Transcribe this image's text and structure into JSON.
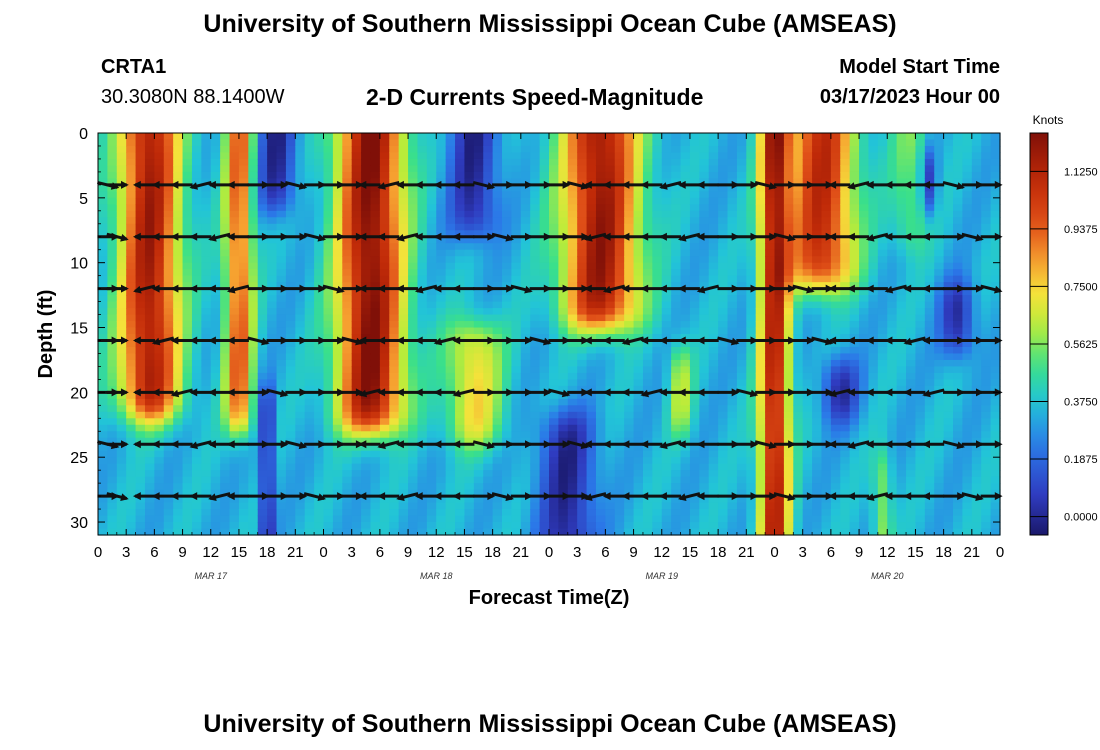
{
  "header": {
    "title": "University of Southern Mississippi Ocean Cube (AMSEAS)",
    "station": "CRTA1",
    "coords": "30.3080N  88.1400W",
    "subtitle": "2-D Currents Speed-Magnitude",
    "model_start_label": "Model Start Time",
    "model_start_value": "03/17/2023 Hour 00"
  },
  "footer": {
    "title": "University of Southern Mississippi Ocean Cube (AMSEAS)"
  },
  "chart_data": {
    "type": "heatmap",
    "xlabel": "Forecast Time(Z)",
    "ylabel": "Depth (ft)",
    "x_ticks": [
      "0",
      "3",
      "6",
      "9",
      "12",
      "15",
      "18",
      "21",
      "0",
      "3",
      "6",
      "9",
      "12",
      "15",
      "18",
      "21",
      "0",
      "3",
      "6",
      "9",
      "12",
      "15",
      "18",
      "21",
      "0",
      "3",
      "6",
      "9",
      "12",
      "15",
      "18",
      "21",
      "0"
    ],
    "day_labels": [
      {
        "text": "MAR 17",
        "x_hours": 12
      },
      {
        "text": "MAR 18",
        "x_hours": 36
      },
      {
        "text": "MAR 19",
        "x_hours": 60
      },
      {
        "text": "MAR 20",
        "x_hours": 84
      }
    ],
    "y_ticks": [
      0,
      5,
      10,
      15,
      20,
      25,
      30
    ],
    "xlim_hours": [
      0,
      96
    ],
    "ylim_ft": [
      0,
      31
    ],
    "colorbar": {
      "label": "Knots",
      "range": [
        -0.06,
        1.25
      ],
      "tick_values": [
        1.125,
        0.9375,
        0.75,
        0.5625,
        0.375,
        0.1875,
        0.0
      ],
      "tick_labels": [
        "1.1250",
        "0.9375",
        "0.7500",
        "0.5625",
        "0.3750",
        "0.1875",
        "0.0000"
      ]
    },
    "bands": [
      {
        "name": "A",
        "center_hours": 5.5,
        "width": 3.2,
        "amp": 1.12,
        "d0": 0,
        "d1": 22
      },
      {
        "name": "B",
        "center_hours": 15.0,
        "width": 1.5,
        "amp": 0.9,
        "d0": 0,
        "d1": 23
      },
      {
        "name": "C",
        "center_hours": 29.0,
        "width": 3.5,
        "amp": 1.2,
        "d0": 0,
        "d1": 23
      },
      {
        "name": "D",
        "center_hours": 40.0,
        "width": 3.0,
        "amp": 0.7,
        "d0": 15,
        "d1": 24
      },
      {
        "name": "E",
        "center_hours": 53.5,
        "width": 4.0,
        "amp": 1.15,
        "d0": 0,
        "d1": 15
      },
      {
        "name": "F",
        "center_hours": 62.0,
        "width": 1.2,
        "amp": 0.6,
        "d0": 17,
        "d1": 23
      },
      {
        "name": "G",
        "center_hours": 72.0,
        "width": 1.6,
        "amp": 1.1,
        "d0": 0,
        "d1": 31
      },
      {
        "name": "H",
        "center_hours": 77.0,
        "width": 3.5,
        "amp": 1.05,
        "d0": 0,
        "d1": 12
      },
      {
        "name": "I",
        "center_hours": 86.5,
        "width": 2.0,
        "amp": 0.5,
        "d0": 0,
        "d1": 9
      },
      {
        "name": "J",
        "center_hours": 83.5,
        "width": 1.0,
        "amp": 0.55,
        "d0": 25,
        "d1": 31
      }
    ],
    "lows": [
      {
        "center_hours": 19.0,
        "width": 2.0,
        "d0": 0,
        "d1": 6
      },
      {
        "center_hours": 18.0,
        "width": 0.8,
        "d0": 20,
        "d1": 31
      },
      {
        "center_hours": 40.0,
        "width": 2.5,
        "d0": 0,
        "d1": 8
      },
      {
        "center_hours": 50.0,
        "width": 3.0,
        "d0": 22,
        "d1": 31
      },
      {
        "center_hours": 91.5,
        "width": 1.8,
        "d0": 12,
        "d1": 17
      },
      {
        "center_hours": 79.0,
        "width": 2.0,
        "d0": 18,
        "d1": 22
      },
      {
        "center_hours": 88.5,
        "width": 0.8,
        "d0": 2,
        "d1": 6
      }
    ],
    "vector_depths_ft": [
      4,
      8,
      12,
      16,
      20,
      24,
      28
    ],
    "vector_times_hours": [
      1,
      2,
      5,
      7,
      9,
      11,
      13,
      15,
      17,
      19,
      21,
      23,
      25,
      27,
      29,
      31,
      33,
      35,
      37,
      39,
      41,
      43,
      45,
      47,
      49,
      51,
      53,
      55,
      57,
      59,
      61,
      63,
      65,
      67,
      69,
      71,
      73,
      75,
      77,
      79,
      81,
      83,
      85,
      87,
      89,
      91,
      93,
      95
    ]
  }
}
